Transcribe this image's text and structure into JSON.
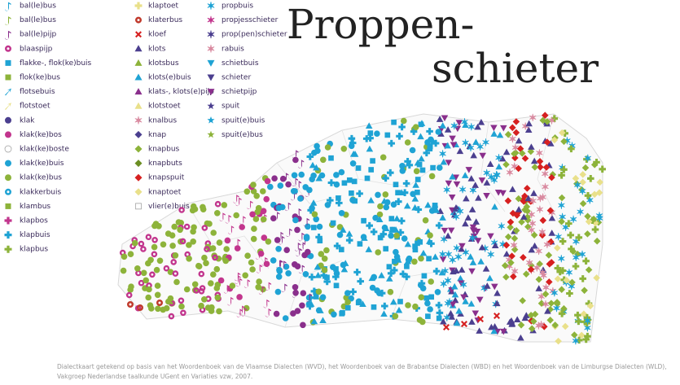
{
  "title": [
    "Proppen-",
    "schieter"
  ],
  "legend": [
    [
      {
        "label": "bal(le)bus",
        "color": "#1fa3d4",
        "shape": "note"
      },
      {
        "label": "bal(le)bus",
        "color": "#8db33a",
        "shape": "note"
      },
      {
        "label": "bal(le)pijp",
        "color": "#8a2f8c",
        "shape": "note"
      },
      {
        "label": "blaaspijp",
        "color": "#c2358d",
        "shape": "ring"
      },
      {
        "label": "flakke-, flok(ke)buis",
        "color": "#1fa3d4",
        "shape": "square"
      },
      {
        "label": "flok(ke)bus",
        "color": "#8db33a",
        "shape": "square"
      },
      {
        "label": "flotsebuis",
        "color": "#1fa3d4",
        "shape": "arrow"
      },
      {
        "label": "flotstoet",
        "color": "#e9e08a",
        "shape": "arrow"
      },
      {
        "label": "klak",
        "color": "#4b3f8f",
        "shape": "circle"
      },
      {
        "label": "klak(ke)bos",
        "color": "#c2358d",
        "shape": "circle"
      },
      {
        "label": "klak(ke)boste",
        "color": "#ffffff",
        "shape": "circle"
      },
      {
        "label": "klak(ke)buis",
        "color": "#1fa3d4",
        "shape": "circle"
      },
      {
        "label": "klak(ke)bus",
        "color": "#8db33a",
        "shape": "circle"
      },
      {
        "label": "klakkerbuis",
        "color": "#1fa3d4",
        "shape": "ring"
      },
      {
        "label": "klambus",
        "color": "#8db33a",
        "shape": "square"
      },
      {
        "label": "klapbos",
        "color": "#c2358d",
        "shape": "plus"
      },
      {
        "label": "klapbuis",
        "color": "#1fa3d4",
        "shape": "plus"
      },
      {
        "label": "klapbus",
        "color": "#8db33a",
        "shape": "plus"
      }
    ],
    [
      {
        "label": "klaptoet",
        "color": "#e9e08a",
        "shape": "plus"
      },
      {
        "label": "klaterbus",
        "color": "#c0392b",
        "shape": "ring"
      },
      {
        "label": "kloef",
        "color": "#d62020",
        "shape": "cross"
      },
      {
        "label": "klots",
        "color": "#4b3f8f",
        "shape": "triangle"
      },
      {
        "label": "klotsbus",
        "color": "#8db33a",
        "shape": "triangle"
      },
      {
        "label": "klots(e)buis",
        "color": "#1fa3d4",
        "shape": "triangle"
      },
      {
        "label": "klats-, klots(e)pijp",
        "color": "#8a2f8c",
        "shape": "triangle"
      },
      {
        "label": "klotstoet",
        "color": "#e9e08a",
        "shape": "triangle"
      },
      {
        "label": "knalbus",
        "color": "#d98aa0",
        "shape": "star6"
      },
      {
        "label": "knap",
        "color": "#4b3f8f",
        "shape": "diamond"
      },
      {
        "label": "knapbus",
        "color": "#8db33a",
        "shape": "diamond"
      },
      {
        "label": "knapbuts",
        "color": "#6b8e23",
        "shape": "diamond"
      },
      {
        "label": "knapspuit",
        "color": "#d62020",
        "shape": "diamond"
      },
      {
        "label": "knaptoet",
        "color": "#e9e08a",
        "shape": "diamond"
      },
      {
        "label": "vlier(e)buis",
        "color": "#ffffff",
        "shape": "square"
      }
    ],
    [
      {
        "label": "propbuis",
        "color": "#1fa3d4",
        "shape": "star6"
      },
      {
        "label": "propjesschieter",
        "color": "#c2358d",
        "shape": "star6"
      },
      {
        "label": "prop(pen)schieter",
        "color": "#4b3f8f",
        "shape": "star6"
      },
      {
        "label": "rabuis",
        "color": "#d98aa0",
        "shape": "star6"
      },
      {
        "label": "schietbuis",
        "color": "#1fa3d4",
        "shape": "tridown"
      },
      {
        "label": "schieter",
        "color": "#4b3f8f",
        "shape": "tridown"
      },
      {
        "label": "schietpijp",
        "color": "#8a2f8c",
        "shape": "tridown"
      },
      {
        "label": "spuit",
        "color": "#4b3f8f",
        "shape": "star"
      },
      {
        "label": "spuit(e)buis",
        "color": "#1fa3d4",
        "shape": "star"
      },
      {
        "label": "spuit(e)bus",
        "color": "#8db33a",
        "shape": "star"
      }
    ]
  ],
  "caption": [
    "Dialectkaart getekend op basis van het Woordenboek van de Vlaamse Dialecten (WVD), het Woordenboek van de Brabantse Dialecten (WBD) en het Woordenboek van de Limburgse Dialecten (WLD),",
    "Vakgroep Nederlandse taalkunde UGent en Variaties vzw, 2007."
  ]
}
